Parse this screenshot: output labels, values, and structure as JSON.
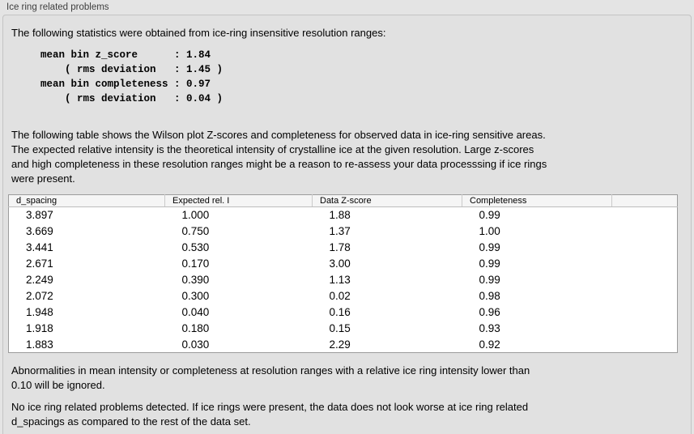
{
  "group": {
    "title": "Ice ring related problems"
  },
  "intro": {
    "text": "The following statistics were obtained from ice-ring insensitive resolution ranges:"
  },
  "stats_block": {
    "text": "mean bin z_score      : 1.84\n    ( rms deviation   : 1.45 )\nmean bin completeness : 0.97\n    ( rms deviation   : 0.04 )"
  },
  "table_note": {
    "text": "The following table shows the Wilson plot Z-scores and completeness for observed data in ice-ring sensitive areas.\nThe expected relative intensity is the theoretical intensity of crystalline ice at the given resolution. Large z-scores\nand high completeness in these resolution ranges might be a reason to re-assess your data processsing if ice rings\nwere present."
  },
  "table": {
    "columns": [
      "d_spacing",
      "Expected rel. I",
      "Data Z-score",
      "Completeness",
      ""
    ],
    "rows": [
      [
        "3.897",
        "1.000",
        "1.88",
        "0.99"
      ],
      [
        "3.669",
        "0.750",
        "1.37",
        "1.00"
      ],
      [
        "3.441",
        "0.530",
        "1.78",
        "0.99"
      ],
      [
        "2.671",
        "0.170",
        "3.00",
        "0.99"
      ],
      [
        "2.249",
        "0.390",
        "1.13",
        "0.99"
      ],
      [
        "2.072",
        "0.300",
        "0.02",
        "0.98"
      ],
      [
        "1.948",
        "0.040",
        "0.16",
        "0.96"
      ],
      [
        "1.918",
        "0.180",
        "0.15",
        "0.93"
      ],
      [
        "1.883",
        "0.030",
        "2.29",
        "0.92"
      ]
    ]
  },
  "ignore_note": {
    "text": "Abnormalities in mean intensity or completeness at resolution ranges with a relative ice ring intensity lower than\n0.10 will be ignored."
  },
  "conclusion": {
    "text": "No ice ring related problems detected. If ice rings were present, the data does not look worse at ice ring related\nd_spacings as compared to the rest of the data set."
  },
  "colors": {
    "page_background": "#e4e4e4",
    "groupbox_background": "#e1e1e1",
    "groupbox_border": "#c3c3c3",
    "table_background": "#ffffff",
    "table_border": "#9b9b9b",
    "table_header_background": "#f5f5f5",
    "text": "#000000"
  }
}
